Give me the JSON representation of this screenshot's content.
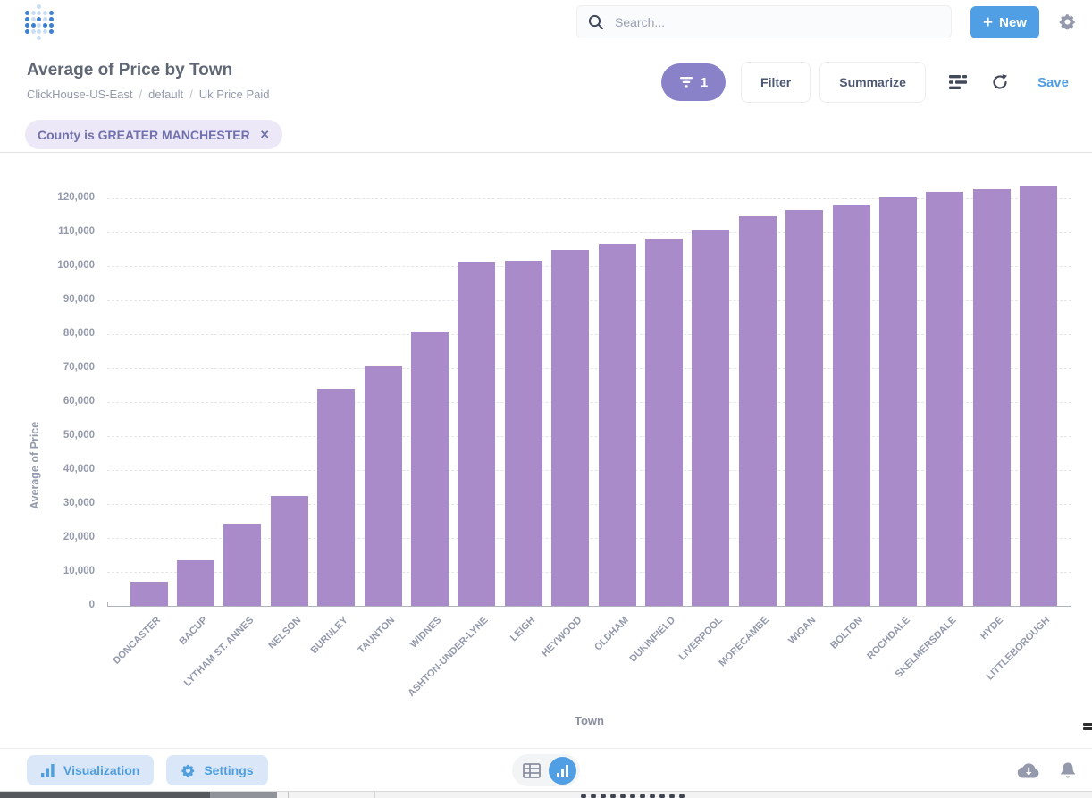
{
  "brand": {
    "accent": "#509EE3",
    "bar_color": "#A98BC9",
    "filter_pill_bg": "#8982C8",
    "chip_bg": "#ECE8F7",
    "chip_text": "#7172AD"
  },
  "header": {
    "search_placeholder": "Search...",
    "new_label": "New"
  },
  "title_bar": {
    "title": "Average of Price by Town",
    "breadcrumb": [
      "ClickHouse-US-East",
      "default",
      "Uk Price Paid"
    ],
    "filter_badge_count": "1",
    "filter_label": "Filter",
    "summarize_label": "Summarize",
    "save_label": "Save"
  },
  "filter_chips": [
    {
      "label": "County is GREATER MANCHESTER"
    }
  ],
  "footer": {
    "visualization_label": "Visualization",
    "settings_label": "Settings"
  },
  "chart_data": {
    "type": "bar",
    "title": "Average of Price by Town",
    "xlabel": "Town",
    "ylabel": "Average of Price",
    "ylim": [
      0,
      130000
    ],
    "yticks": [
      0,
      10000,
      20000,
      30000,
      40000,
      50000,
      60000,
      70000,
      80000,
      90000,
      100000,
      110000,
      120000
    ],
    "grid": "dashed-horizontal",
    "legend_position": "none",
    "bar_color": "#A98BC9",
    "categories": [
      "DONCASTER",
      "BACUP",
      "LYTHAM ST. ANNES",
      "NELSON",
      "BURNLEY",
      "TAUNTON",
      "WIDNES",
      "ASHTON-UNDER-LYNE",
      "LEIGH",
      "HEYWOOD",
      "OLDHAM",
      "DUKINFIELD",
      "LIVERPOOL",
      "MORECAMBE",
      "WIGAN",
      "BOLTON",
      "ROCHDALE",
      "SKELMERSDALE",
      "HYDE",
      "LITTLEBOROUGH"
    ],
    "values": [
      7000,
      13400,
      24100,
      32500,
      64000,
      70600,
      80800,
      101200,
      101500,
      104800,
      106600,
      108200,
      110800,
      114800,
      116600,
      118100,
      120200,
      121800,
      122900,
      123700
    ]
  }
}
